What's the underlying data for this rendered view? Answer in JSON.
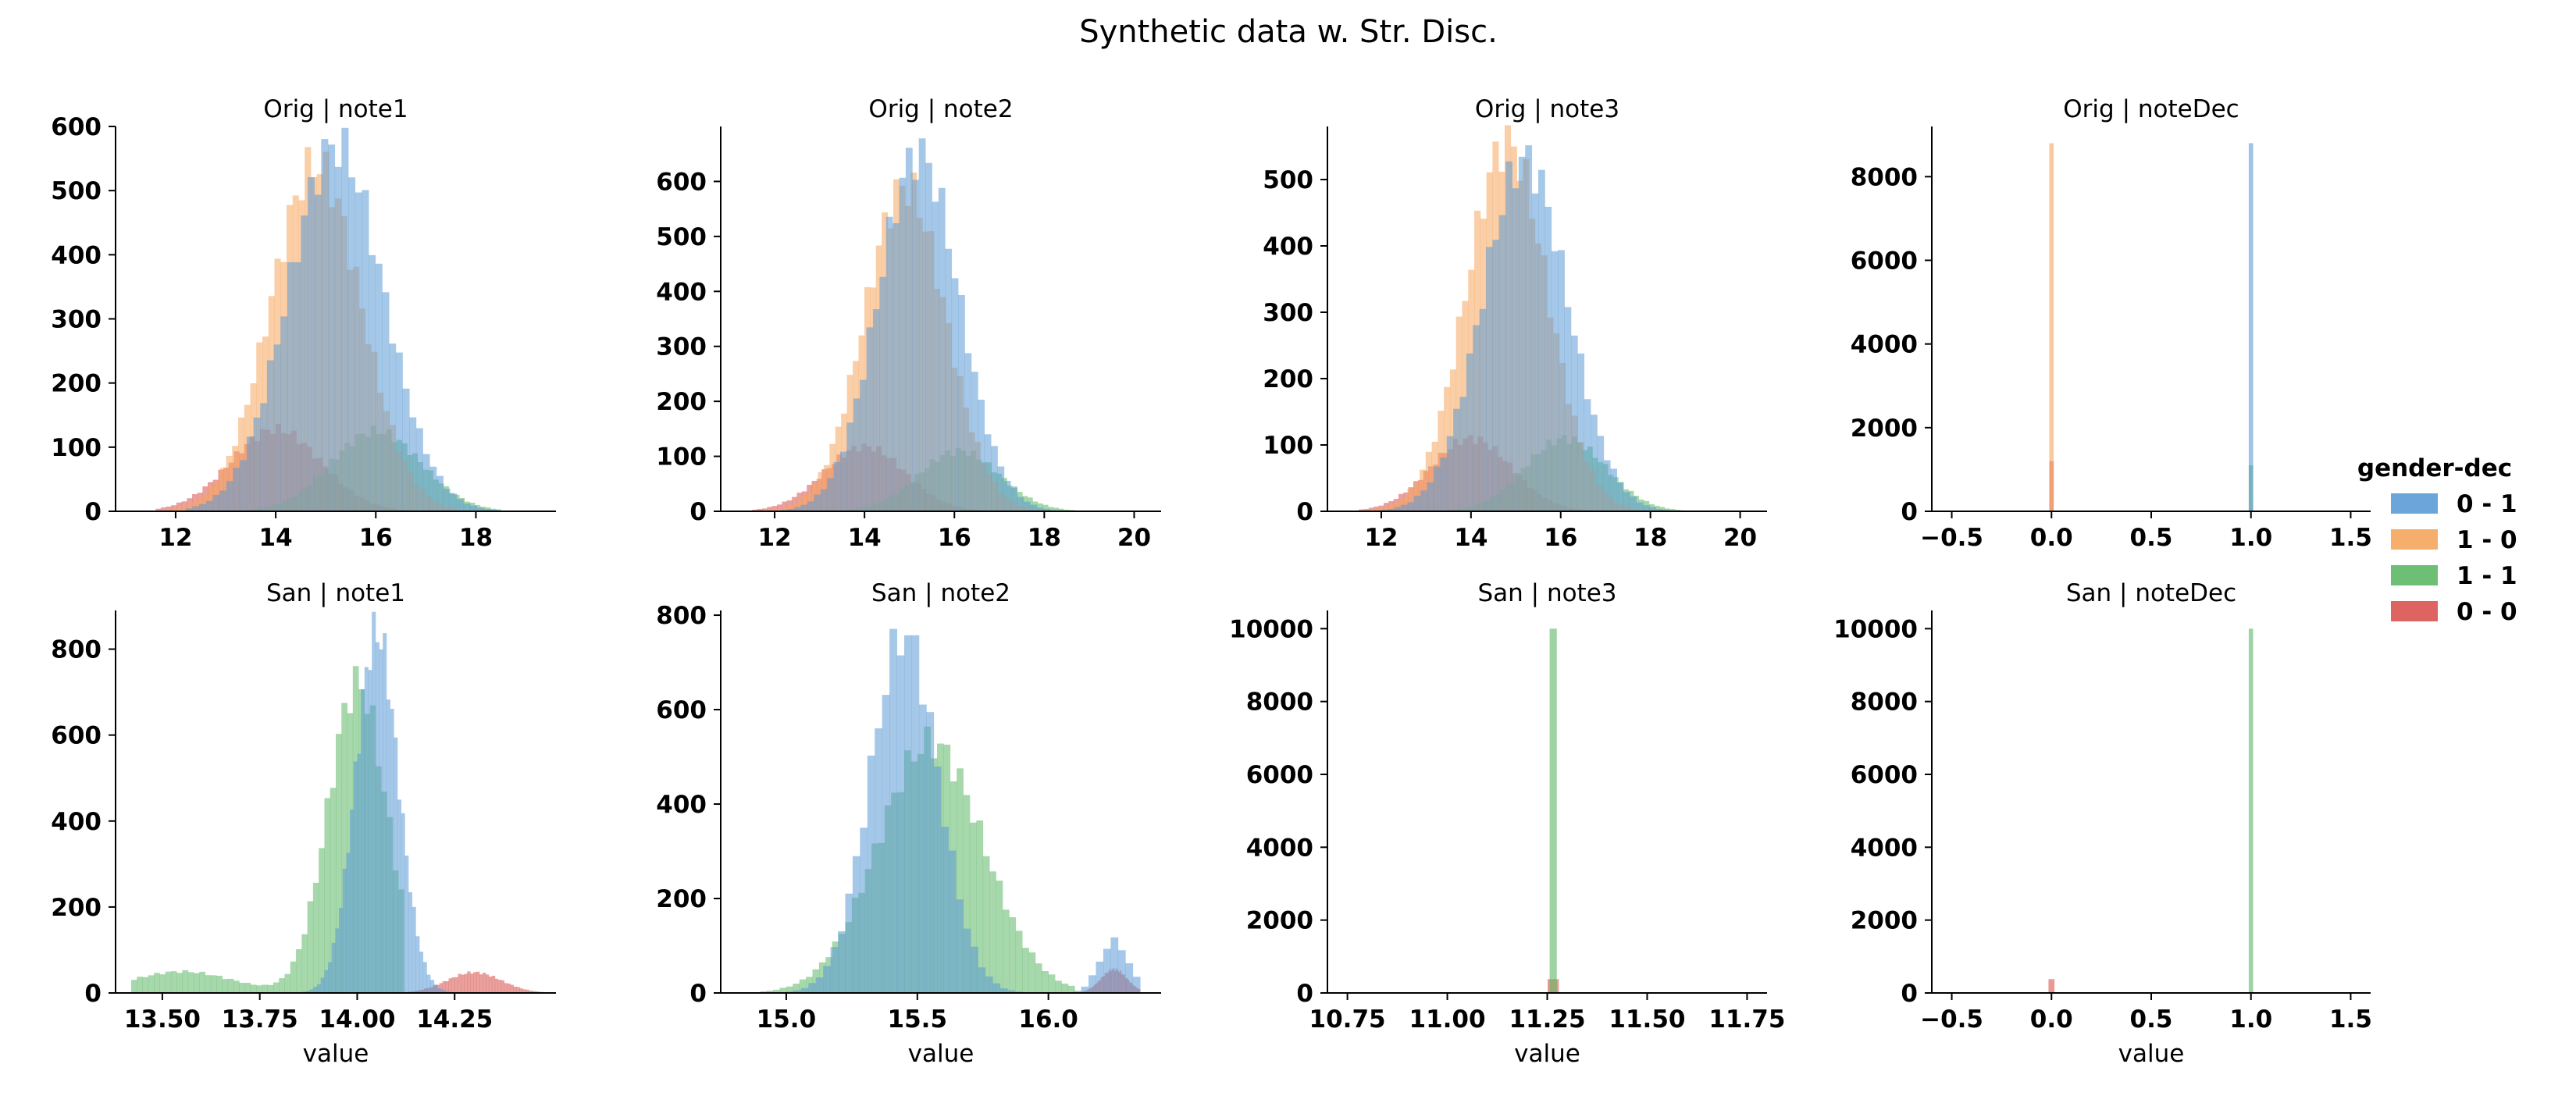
{
  "chart_data": {
    "type": "histogram-facet-grid",
    "title": "Synthetic data w. Str. Disc.",
    "legend": {
      "title": "gender-dec",
      "placement": "right",
      "entries": [
        {
          "label": "0 - 1",
          "color": "#5b9bd5"
        },
        {
          "label": "1 - 0",
          "color": "#f5a55c"
        },
        {
          "label": "1 - 1",
          "color": "#5db866"
        },
        {
          "label": "0 - 0",
          "color": "#d9534f"
        }
      ]
    },
    "draw_order": [
      "0 - 0",
      "1 - 1",
      "1 - 0",
      "0 - 1"
    ],
    "panels": [
      {
        "title": "Orig | note1",
        "xlabel": "",
        "xlim": [
          10.8,
          19.6
        ],
        "ylim": [
          0,
          600
        ],
        "xticks": [
          12,
          14,
          16,
          18
        ],
        "xtick_labels": [
          "12",
          "14",
          "16",
          "18"
        ],
        "yticks": [
          0,
          100,
          200,
          300,
          400,
          500,
          600
        ],
        "ytick_labels": [
          "0",
          "100",
          "200",
          "300",
          "400",
          "500",
          "600"
        ],
        "series": [
          {
            "label": "0 - 1",
            "dist": "normal",
            "mean": 15.2,
            "sd": 0.95,
            "peak": 570,
            "range": [
              12.2,
              18.7
            ]
          },
          {
            "label": "1 - 0",
            "dist": "normal",
            "mean": 14.8,
            "sd": 0.9,
            "peak": 540,
            "range": [
              11.8,
              17.6
            ]
          },
          {
            "label": "1 - 1",
            "dist": "normal",
            "mean": 16.0,
            "sd": 0.9,
            "peak": 125,
            "range": [
              13.5,
              18.5
            ]
          },
          {
            "label": "0 - 0",
            "dist": "normal",
            "mean": 14.0,
            "sd": 0.9,
            "peak": 128,
            "range": [
              11.6,
              16.6
            ]
          }
        ]
      },
      {
        "title": "Orig | note2",
        "xlabel": "",
        "xlim": [
          10.8,
          20.6
        ],
        "ylim": [
          0,
          700
        ],
        "xticks": [
          12,
          14,
          16,
          18,
          20
        ],
        "xtick_labels": [
          "12",
          "14",
          "16",
          "18",
          "20"
        ],
        "yticks": [
          0,
          100,
          200,
          300,
          400,
          500,
          600
        ],
        "ytick_labels": [
          "0",
          "100",
          "200",
          "300",
          "400",
          "500",
          "600"
        ],
        "series": [
          {
            "label": "0 - 1",
            "dist": "normal",
            "mean": 15.2,
            "sd": 0.9,
            "peak": 650,
            "range": [
              12.0,
              19.0
            ]
          },
          {
            "label": "1 - 0",
            "dist": "normal",
            "mean": 14.9,
            "sd": 0.9,
            "peak": 590,
            "range": [
              11.8,
              18.0
            ]
          },
          {
            "label": "1 - 1",
            "dist": "normal",
            "mean": 16.1,
            "sd": 0.9,
            "peak": 110,
            "range": [
              13.5,
              19.0
            ]
          },
          {
            "label": "0 - 0",
            "dist": "normal",
            "mean": 14.0,
            "sd": 0.9,
            "peak": 118,
            "range": [
              11.5,
              16.8
            ]
          }
        ]
      },
      {
        "title": "Orig | note3",
        "xlabel": "",
        "xlim": [
          10.8,
          20.6
        ],
        "ylim": [
          0,
          580
        ],
        "xticks": [
          12,
          14,
          16,
          18,
          20
        ],
        "xtick_labels": [
          "12",
          "14",
          "16",
          "18",
          "20"
        ],
        "yticks": [
          0,
          100,
          200,
          300,
          400,
          500
        ],
        "ytick_labels": [
          "0",
          "100",
          "200",
          "300",
          "400",
          "500"
        ],
        "series": [
          {
            "label": "0 - 1",
            "dist": "normal",
            "mean": 15.2,
            "sd": 0.95,
            "peak": 530,
            "range": [
              12.0,
              19.0
            ]
          },
          {
            "label": "1 - 0",
            "dist": "normal",
            "mean": 14.8,
            "sd": 0.9,
            "peak": 555,
            "range": [
              11.5,
              18.0
            ]
          },
          {
            "label": "1 - 1",
            "dist": "normal",
            "mean": 16.1,
            "sd": 0.9,
            "peak": 110,
            "range": [
              13.5,
              19.0
            ]
          },
          {
            "label": "0 - 0",
            "dist": "normal",
            "mean": 14.0,
            "sd": 0.9,
            "peak": 110,
            "range": [
              11.5,
              16.8
            ]
          }
        ]
      },
      {
        "title": "Orig | noteDec",
        "xlabel": "",
        "xlim": [
          -0.6,
          1.6
        ],
        "ylim": [
          0,
          9200
        ],
        "xticks": [
          -0.5,
          0.0,
          0.5,
          1.0,
          1.5
        ],
        "xtick_labels": [
          "−0.5",
          "0.0",
          "0.5",
          "1.0",
          "1.5"
        ],
        "yticks": [
          0,
          2000,
          4000,
          6000,
          8000
        ],
        "ytick_labels": [
          "0",
          "2000",
          "4000",
          "6000",
          "8000"
        ],
        "series": [
          {
            "label": "0 - 1",
            "dist": "spike",
            "at": 1.0,
            "width": 0.022,
            "peak": 8800
          },
          {
            "label": "1 - 0",
            "dist": "spike",
            "at": 0.0,
            "width": 0.022,
            "peak": 8800
          },
          {
            "label": "1 - 1",
            "dist": "spike",
            "at": 1.0,
            "width": 0.022,
            "peak": 1100
          },
          {
            "label": "0 - 0",
            "dist": "spike",
            "at": 0.0,
            "width": 0.022,
            "peak": 1200
          }
        ]
      },
      {
        "title": "San | note1",
        "xlabel": "value",
        "xlim": [
          13.38,
          14.51
        ],
        "ylim": [
          0,
          890
        ],
        "xticks": [
          13.5,
          13.75,
          14.0,
          14.25
        ],
        "xtick_labels": [
          "13.50",
          "13.75",
          "14.00",
          "14.25"
        ],
        "yticks": [
          0,
          200,
          400,
          600,
          800
        ],
        "ytick_labels": [
          "0",
          "200",
          "400",
          "600",
          "800"
        ],
        "series": [
          {
            "label": "0 - 1",
            "dist": "normal",
            "mean": 14.05,
            "sd": 0.055,
            "peak": 840,
            "range": [
              13.85,
              14.3
            ]
          },
          {
            "label": "1 - 1",
            "dist": "mix",
            "range": [
              13.42,
              14.12
            ],
            "components": [
              {
                "mean": 14.0,
                "sd": 0.075,
                "peak": 720
              },
              {
                "mean": 13.55,
                "sd": 0.13,
                "peak": 50
              }
            ]
          },
          {
            "label": "0 - 0",
            "dist": "normal",
            "mean": 14.3,
            "sd": 0.07,
            "peak": 48,
            "range": [
              14.1,
              14.48
            ]
          }
        ]
      },
      {
        "title": "San | note2",
        "xlabel": "value",
        "xlim": [
          14.75,
          16.43
        ],
        "ylim": [
          0,
          810
        ],
        "xticks": [
          15.0,
          15.5,
          16.0
        ],
        "xtick_labels": [
          "15.0",
          "15.5",
          "16.0"
        ],
        "yticks": [
          0,
          200,
          400,
          600,
          800
        ],
        "ytick_labels": [
          "0",
          "200",
          "400",
          "600",
          "800"
        ],
        "series": [
          {
            "label": "0 - 1",
            "dist": "mix",
            "range": [
              15.0,
              16.35
            ],
            "components": [
              {
                "mean": 15.45,
                "sd": 0.13,
                "peak": 760
              },
              {
                "mean": 16.25,
                "sd": 0.055,
                "peak": 110
              }
            ]
          },
          {
            "label": "1 - 1",
            "dist": "normal",
            "mean": 15.55,
            "sd": 0.2,
            "peak": 530,
            "range": [
              14.9,
              16.1
            ]
          },
          {
            "label": "0 - 0",
            "dist": "normal",
            "mean": 16.25,
            "sd": 0.05,
            "peak": 50,
            "range": [
              16.1,
              16.35
            ]
          }
        ]
      },
      {
        "title": "San | note3",
        "xlabel": "value",
        "xlim": [
          10.7,
          11.8
        ],
        "ylim": [
          0,
          10500
        ],
        "xticks": [
          10.75,
          11.0,
          11.25,
          11.5,
          11.75
        ],
        "xtick_labels": [
          "10.75",
          "11.00",
          "11.25",
          "11.50",
          "11.75"
        ],
        "yticks": [
          0,
          2000,
          4000,
          6000,
          8000,
          10000
        ],
        "ytick_labels": [
          "0",
          "2000",
          "4000",
          "6000",
          "8000",
          "10000"
        ],
        "series": [
          {
            "label": "1 - 1",
            "dist": "spike",
            "at": 11.265,
            "width": 0.018,
            "peak": 10000
          },
          {
            "label": "0 - 0",
            "dist": "spike",
            "at": 11.265,
            "width": 0.028,
            "peak": 380
          }
        ]
      },
      {
        "title": "San | noteDec",
        "xlabel": "value",
        "xlim": [
          -0.6,
          1.6
        ],
        "ylim": [
          0,
          10500
        ],
        "xticks": [
          -0.5,
          0.0,
          0.5,
          1.0,
          1.5
        ],
        "xtick_labels": [
          "−0.5",
          "0.0",
          "0.5",
          "1.0",
          "1.5"
        ],
        "yticks": [
          0,
          2000,
          4000,
          6000,
          8000,
          10000
        ],
        "ytick_labels": [
          "0",
          "2000",
          "4000",
          "6000",
          "8000",
          "10000"
        ],
        "series": [
          {
            "label": "1 - 1",
            "dist": "spike",
            "at": 1.0,
            "width": 0.022,
            "peak": 10000
          },
          {
            "label": "0 - 0",
            "dist": "spike",
            "at": 0.0,
            "width": 0.03,
            "peak": 380
          }
        ]
      }
    ]
  }
}
